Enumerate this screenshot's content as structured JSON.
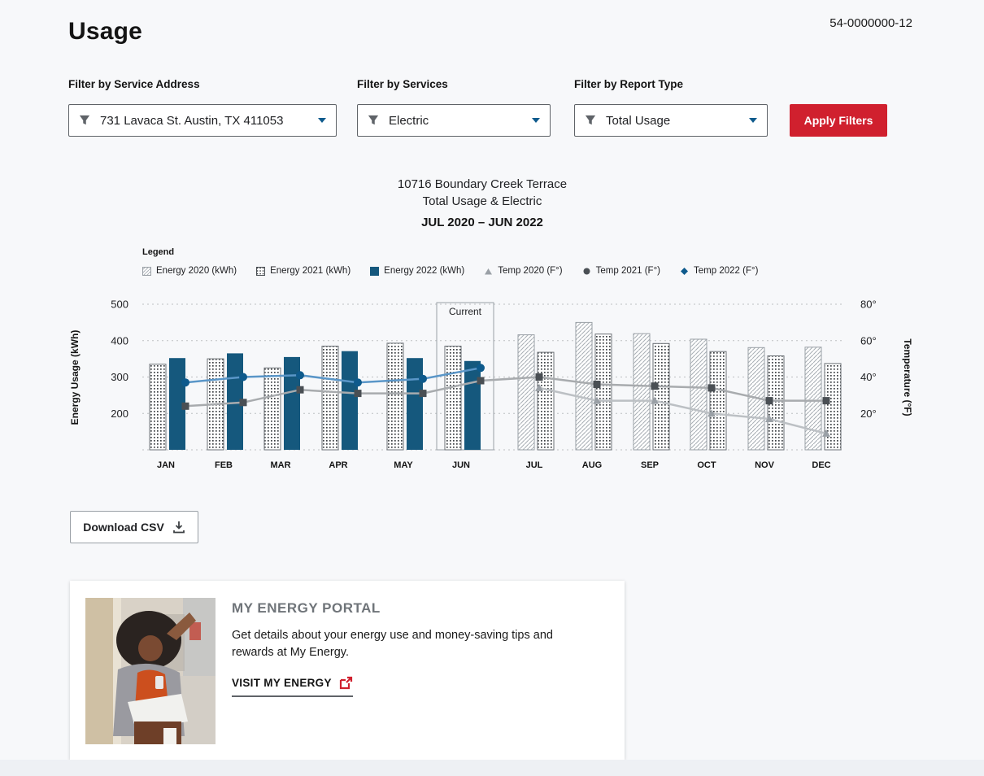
{
  "page": {
    "title": "Usage",
    "account_number": "54-0000000-12"
  },
  "filters": {
    "service_address": {
      "label": "Filter by Service Address",
      "value": "731 Lavaca St. Austin, TX 411053"
    },
    "services": {
      "label": "Filter by Services",
      "value": "Electric"
    },
    "report_type": {
      "label": "Filter by Report Type",
      "value": "Total Usage"
    },
    "apply_button_label": "Apply Filters"
  },
  "chart_header": {
    "title_line1": "10716 Boundary Creek Terrace",
    "title_line2": "Total Usage & Electric",
    "date_range": "JUL 2020 – JUN 2022"
  },
  "chart_data": {
    "type": "bar+line",
    "categories": [
      "JAN",
      "FEB",
      "MAR",
      "APR",
      "MAY",
      "JUN",
      "JUL",
      "AUG",
      "SEP",
      "OCT",
      "NOV",
      "DEC"
    ],
    "left_axis": {
      "label": "Energy Usage (kWh)",
      "ticks": [
        500,
        400,
        300,
        200
      ],
      "min": 100,
      "max": 520
    },
    "right_axis": {
      "label": "Temperature (°F)",
      "ticks": [
        "80°",
        "60°",
        "40°",
        "20°"
      ]
    },
    "grid": "horizontal-dashed",
    "bar_series": [
      {
        "name": "Energy 2020 (kWh)",
        "pattern": "diagonal-hatch",
        "stroke": "#9aa0a6",
        "values": [
          null,
          null,
          null,
          null,
          null,
          null,
          416,
          450,
          419,
          404,
          381,
          382
        ]
      },
      {
        "name": "Energy 2021 (kWh)",
        "pattern": "dot-hatch",
        "stroke": "#6b7075",
        "values": [
          335,
          350,
          325,
          385,
          393,
          385,
          368,
          418,
          392,
          370,
          358,
          337
        ]
      },
      {
        "name": "Energy 2022 (kWh)",
        "pattern": "solid",
        "color": "#15587d",
        "values": [
          352,
          365,
          355,
          371,
          352,
          344,
          null,
          null,
          null,
          null,
          null,
          null
        ]
      }
    ],
    "line_series": [
      {
        "name": "Temp 2020 (F°)",
        "marker": "triangle",
        "line_color": "#bcc0c4",
        "marker_color": "#9aa0a6",
        "values": [
          null,
          null,
          null,
          null,
          null,
          null,
          34,
          27,
          27,
          20,
          17,
          9
        ]
      },
      {
        "name": "Temp 2021 (F°)",
        "marker": "square",
        "line_color": "#a8abae",
        "marker_color": "#4a4f54",
        "values": [
          24,
          26,
          33,
          31,
          31,
          38,
          40,
          36,
          35,
          34,
          27,
          27
        ]
      },
      {
        "name": "Temp 2022 (F°)",
        "marker": "circle",
        "line_color": "#5a96c8",
        "marker_color": "#0e5a8c",
        "values": [
          37,
          40,
          41,
          37,
          39,
          45,
          null,
          null,
          null,
          null,
          null,
          null
        ]
      }
    ],
    "current": {
      "label": "Current",
      "month": "JUN"
    },
    "legend": {
      "heading": "Legend",
      "items": [
        {
          "label": "Energy 2020 (kWh)",
          "glyph": "square-diagonal-hatch",
          "color": "#9aa0a6"
        },
        {
          "label": "Energy 2021 (kWh)",
          "glyph": "square-dot-hatch",
          "color": "#4a4f54"
        },
        {
          "label": "Energy 2022 (kWh)",
          "glyph": "square-solid",
          "color": "#15587d"
        },
        {
          "label": "Temp 2020 (F°)",
          "glyph": "triangle",
          "color": "#9aa0a6"
        },
        {
          "label": "Temp 2021 (F°)",
          "glyph": "circle",
          "color": "#4a4f54"
        },
        {
          "label": "Temp 2022 (F°)",
          "glyph": "diamond",
          "color": "#0e5a8c"
        }
      ]
    }
  },
  "download_button_label": "Download CSV",
  "promo_card": {
    "heading": "MY ENERGY PORTAL",
    "body": "Get details about your energy use and money-saving tips and rewards at My Energy.",
    "link_label": "VISIT MY ENERGY"
  },
  "colors": {
    "accent_red": "#d0202e",
    "bar_blue": "#15587d",
    "line_blue": "#0e5a8c"
  }
}
